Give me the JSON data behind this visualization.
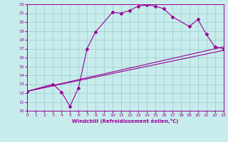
{
  "xlabel": "Windchill (Refroidissement éolien,°C)",
  "xlim": [
    0,
    23
  ],
  "ylim": [
    10,
    22
  ],
  "xticks": [
    0,
    1,
    2,
    3,
    4,
    5,
    6,
    7,
    8,
    9,
    10,
    11,
    12,
    13,
    14,
    15,
    16,
    17,
    18,
    19,
    20,
    21,
    22,
    23
  ],
  "yticks": [
    10,
    11,
    12,
    13,
    14,
    15,
    16,
    17,
    18,
    19,
    20,
    21,
    22
  ],
  "bg_color": "#c8ecec",
  "line_color": "#990099",
  "grid_color": "#99cccc",
  "line1_x": [
    0,
    23
  ],
  "line1_y": [
    12.2,
    16.8
  ],
  "line2_x": [
    0,
    23
  ],
  "line2_y": [
    12.2,
    17.2
  ],
  "line3_x": [
    0,
    3,
    4,
    5,
    6,
    7,
    8,
    10,
    11,
    12,
    13,
    14,
    15,
    16,
    17,
    19,
    20,
    21,
    22,
    23
  ],
  "line3_y": [
    12.2,
    13.0,
    12.1,
    10.5,
    12.6,
    17.0,
    18.9,
    21.1,
    21.0,
    21.3,
    21.8,
    21.9,
    21.8,
    21.5,
    20.6,
    19.5,
    20.3,
    18.6,
    17.2,
    17.0
  ]
}
